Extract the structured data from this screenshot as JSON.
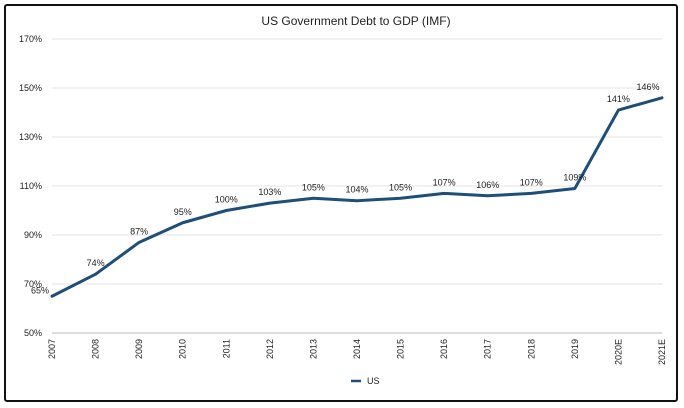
{
  "chart_data": {
    "type": "line",
    "title": "US Government Debt to GDP (IMF)",
    "xlabel": "",
    "ylabel": "",
    "categories": [
      "2007",
      "2008",
      "2009",
      "2010",
      "2011",
      "2012",
      "2013",
      "2014",
      "2015",
      "2016",
      "2017",
      "2018",
      "2019",
      "2020E",
      "2021E"
    ],
    "series": [
      {
        "name": "US",
        "color": "#1f4e79",
        "values": [
          65,
          74,
          87,
          95,
          100,
          103,
          105,
          104,
          105,
          107,
          106,
          107,
          109,
          141,
          146
        ],
        "labels": [
          "65%",
          "74%",
          "87%",
          "95%",
          "100%",
          "103%",
          "105%",
          "104%",
          "105%",
          "107%",
          "106%",
          "107%",
          "109%",
          "141%",
          "146%"
        ]
      }
    ],
    "ylim": [
      50,
      170
    ],
    "yticks": [
      50,
      70,
      90,
      110,
      130,
      150,
      170
    ],
    "ytick_labels": [
      "50%",
      "70%",
      "90%",
      "110%",
      "130%",
      "150%",
      "170%"
    ],
    "grid": "horizontal",
    "legend_position": "bottom"
  }
}
